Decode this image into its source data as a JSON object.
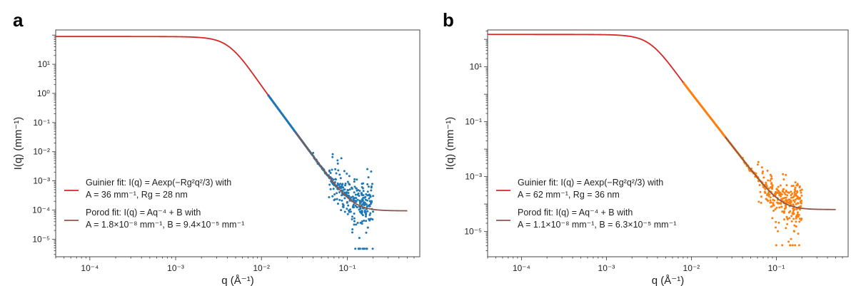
{
  "chart_data": [
    {
      "panel": "a",
      "type": "scatter",
      "xscale": "log",
      "yscale": "log",
      "xlim": [
        4e-05,
        0.7
      ],
      "ylim": [
        2.5e-06,
        150
      ],
      "xticks": [
        0.0001,
        0.001,
        0.01,
        0.1
      ],
      "xtick_labels": [
        "10⁻⁴",
        "10⁻³",
        "10⁻²",
        "10⁻¹"
      ],
      "yticks": [
        1e-05,
        0.0001,
        0.001,
        0.01,
        0.1,
        1,
        10
      ],
      "ytick_labels": [
        "10⁻⁵",
        "10⁻⁴",
        "10⁻³",
        "10⁻²",
        "10⁻¹",
        "10⁰",
        "10¹"
      ],
      "xlabel": "q (Å⁻¹)",
      "ylabel": "I(q) (mm⁻¹)",
      "legend_position": "lower-left",
      "data_color": "#1f77b4",
      "guinier": {
        "A": 36,
        "Rg": 28,
        "color": "#d62728",
        "label_line1": "Guinier fit: I(q) = Aexp(−Rg²q²/3) with",
        "label_line2": "A = 36 mm⁻¹, Rg = 28 nm"
      },
      "porod": {
        "A": 1.8e-08,
        "B": 9.4e-05,
        "color": "#8c564b",
        "label_line1": "Porod fit: I(q) = Aq⁻⁴ + B with",
        "label_line2": "A = 1.8×10⁻⁸ mm⁻¹, B = 9.4×10⁻⁵ mm⁻¹"
      },
      "data_points": [
        [
          0.012,
          0.2
        ],
        [
          0.014,
          0.12
        ],
        [
          0.016,
          0.07
        ],
        [
          0.018,
          0.045
        ],
        [
          0.02,
          0.028
        ],
        [
          0.023,
          0.017
        ],
        [
          0.026,
          0.011
        ],
        [
          0.03,
          0.0065
        ],
        [
          0.034,
          0.004
        ],
        [
          0.038,
          0.0026
        ],
        [
          0.042,
          0.0018
        ],
        [
          0.046,
          0.0013
        ],
        [
          0.05,
          0.0009
        ],
        [
          0.055,
          0.0007
        ],
        [
          0.06,
          0.0005
        ],
        [
          0.065,
          0.0004
        ],
        [
          0.07,
          0.0003
        ],
        [
          0.075,
          0.00025
        ],
        [
          0.08,
          0.00022
        ],
        [
          0.085,
          0.0002
        ],
        [
          0.09,
          0.00018
        ],
        [
          0.1,
          0.00015
        ],
        [
          0.11,
          0.00014
        ],
        [
          0.12,
          0.00013
        ],
        [
          0.13,
          0.00012
        ],
        [
          0.14,
          0.00012
        ],
        [
          0.15,
          0.00011
        ],
        [
          0.16,
          0.00011
        ],
        [
          0.17,
          0.00011
        ],
        [
          0.18,
          0.0001
        ],
        [
          0.19,
          0.0001
        ]
      ]
    },
    {
      "panel": "b",
      "type": "scatter",
      "xscale": "log",
      "yscale": "log",
      "xlim": [
        4e-05,
        0.7
      ],
      "ylim": [
        1.2e-06,
        220
      ],
      "xticks": [
        0.0001,
        0.001,
        0.01,
        0.1
      ],
      "xtick_labels": [
        "10⁻⁴",
        "10⁻³",
        "10⁻²",
        "10⁻¹"
      ],
      "yticks": [
        1e-05,
        0.001,
        0.1,
        10
      ],
      "ytick_labels": [
        "10⁻⁵",
        "10⁻³",
        "10⁻¹",
        "10¹"
      ],
      "xlabel": "q (Å⁻¹)",
      "ylabel": "I(q) (mm⁻¹)",
      "legend_position": "lower-left",
      "data_color": "#ff7f0e",
      "guinier": {
        "A": 62,
        "Rg": 36,
        "color": "#d62728",
        "label_line1": "Guinier fit: I(q) = Aexp(−Rg²q²/3) with",
        "label_line2": "A = 62 mm⁻¹, Rg = 36 nm"
      },
      "porod": {
        "A": 1.1e-08,
        "B": 6.3e-05,
        "color": "#8c564b",
        "label_line1": "Porod fit: I(q) = Aq⁻⁴ + B with",
        "label_line2": "A = 1.1×10⁻⁸ mm⁻¹, B = 6.3×10⁻⁵ mm⁻¹"
      },
      "data_points": [
        [
          0.008,
          0.5
        ],
        [
          0.01,
          0.2
        ],
        [
          0.012,
          0.1
        ],
        [
          0.014,
          0.055
        ],
        [
          0.016,
          0.032
        ],
        [
          0.018,
          0.02
        ],
        [
          0.021,
          0.011
        ],
        [
          0.024,
          0.0065
        ],
        [
          0.028,
          0.0036
        ],
        [
          0.032,
          0.0021
        ],
        [
          0.036,
          0.0013
        ],
        [
          0.04,
          0.0009
        ],
        [
          0.045,
          0.0006
        ],
        [
          0.05,
          0.00042
        ],
        [
          0.055,
          0.0003
        ],
        [
          0.06,
          0.00023
        ],
        [
          0.065,
          0.00018
        ],
        [
          0.07,
          0.00015
        ],
        [
          0.08,
          0.00012
        ],
        [
          0.09,
          0.0001
        ],
        [
          0.1,
          9e-05
        ],
        [
          0.11,
          8e-05
        ],
        [
          0.12,
          7.5e-05
        ],
        [
          0.13,
          7e-05
        ],
        [
          0.14,
          7e-05
        ],
        [
          0.15,
          6.8e-05
        ],
        [
          0.16,
          6.7e-05
        ],
        [
          0.17,
          6.6e-05
        ],
        [
          0.18,
          6.5e-05
        ],
        [
          0.19,
          6.5e-05
        ]
      ]
    }
  ]
}
